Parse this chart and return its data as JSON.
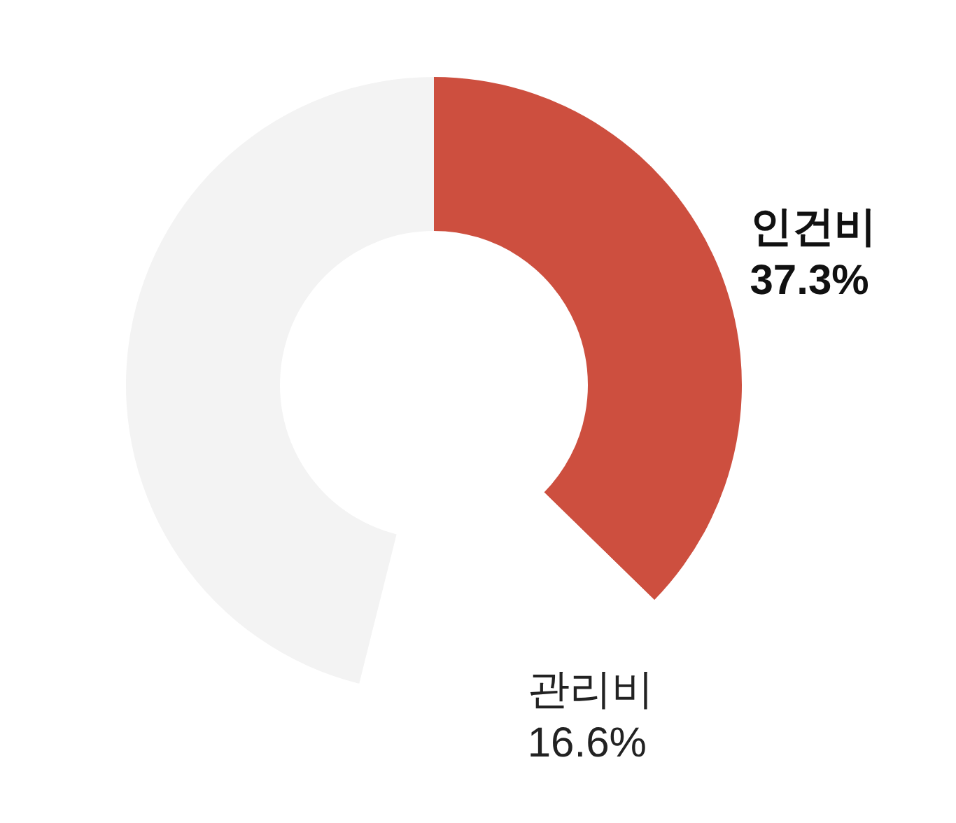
{
  "chart_data": {
    "type": "donut",
    "categories": [
      "인건비",
      "관리비",
      null
    ],
    "values": [
      37.3,
      16.6,
      46.1
    ],
    "colors": [
      "#cd4f3f",
      "#ffffff",
      "#f3f3f3"
    ],
    "value_labels": [
      "37.3%",
      "16.6%",
      null
    ]
  }
}
